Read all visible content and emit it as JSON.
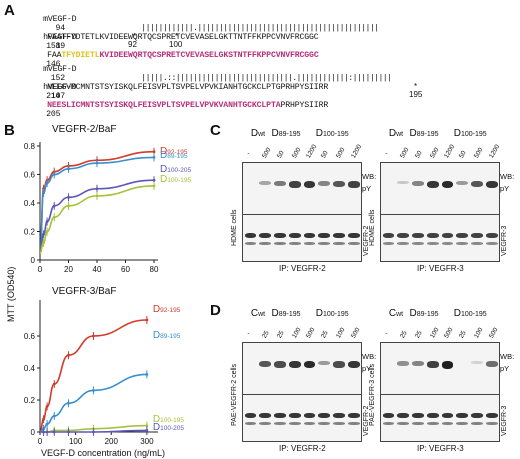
{
  "panels": {
    "A": "A",
    "B": "B",
    "C": "C",
    "D": "D"
  },
  "panel_a": {
    "rows": [
      {
        "label": "mVEGF-D",
        "start": "94",
        "seq_plain": "FAATFYDTETLKVIDEEWQRTQCSPRETCVEVASELGKTTNTFFKPPCVNVFRCGGC",
        "end": "151"
      },
      {
        "match": "||||||||||||.||||||||||||||||||||||||||||||||||||||||||",
        "match_spaced": "|.|| ||"
      },
      {
        "label": "hVEGF-D",
        "start": "89",
        "seq_plain": "FAA",
        "seq_yellow": "TFYDIETL",
        "seq_pink": "KVIDEEWQRTQCSPRETCVEVASELGKSTNTFFKPPCVNVFRCGGC",
        "end": "146"
      },
      {
        "label": "mVEGF-D",
        "start": "152",
        "seq_plain": "NEEGVMCMNTSTSYISKQLFEISVPLTSVPELVPVKIANHTGCKCLPTGPRHPYSIIRR",
        "end": "210"
      },
      {
        "match": "|||||.::|||||||||||||||||||||||||||.||||||||||||:|||||||||"
      },
      {
        "label": "hVEGF-D",
        "start": "147",
        "seq_pink": "NEESLICMNTSTSYISKQLFEISVPLTSVPELVPVKVANHTGCKCLPTA",
        "seq_plain": "PRHPYSIIRR",
        "end": "205"
      }
    ],
    "markers": [
      "92",
      "100",
      "195"
    ]
  },
  "panel_b": {
    "chart_data": [
      {
        "type": "line",
        "title": "VEGFR-2/BaF",
        "ylim": [
          0,
          0.8
        ],
        "xlim": [
          0,
          80
        ],
        "xticks": [
          0,
          20,
          40,
          60,
          80
        ],
        "yticks": [
          0,
          0.2,
          0.4,
          0.6,
          0.8
        ],
        "series": [
          {
            "name": "D92-195",
            "base": "D",
            "sub": "92-195",
            "color": "#d23b2a",
            "x": [
              0,
              2.5,
              5,
              10,
              20,
              40,
              80
            ],
            "y": [
              0.05,
              0.5,
              0.56,
              0.62,
              0.66,
              0.7,
              0.76
            ]
          },
          {
            "name": "D89-195",
            "base": "D",
            "sub": "89-195",
            "color": "#3a8fd0",
            "x": [
              0,
              2.5,
              5,
              10,
              20,
              40,
              80
            ],
            "y": [
              0.05,
              0.47,
              0.54,
              0.6,
              0.64,
              0.68,
              0.72
            ]
          },
          {
            "name": "D100-205",
            "base": "D",
            "sub": "100-205",
            "color": "#5a58b8",
            "x": [
              0,
              2.5,
              5,
              10,
              20,
              40,
              80
            ],
            "y": [
              0.05,
              0.18,
              0.27,
              0.38,
              0.44,
              0.5,
              0.56
            ]
          },
          {
            "name": "D100-195",
            "base": "D",
            "sub": "100-195",
            "color": "#a8c23a",
            "x": [
              0,
              2.5,
              5,
              10,
              20,
              40,
              80
            ],
            "y": [
              0.05,
              0.12,
              0.2,
              0.3,
              0.38,
              0.45,
              0.52
            ]
          }
        ]
      },
      {
        "type": "line",
        "title": "VEGFR-3/BaF",
        "ylim": [
          0,
          0.8
        ],
        "xlim": [
          0,
          320
        ],
        "xticks": [
          0,
          100,
          200,
          300
        ],
        "yticks": [
          0,
          0.2,
          0.4,
          0.6
        ],
        "xlabel": "VEGF-D concentration (ng/mL)",
        "series": [
          {
            "name": "D92-195",
            "base": "D",
            "sub": "92-195",
            "color": "#d23b2a",
            "x": [
              0,
              10,
              20,
              40,
              80,
              150,
              300
            ],
            "y": [
              0.0,
              0.08,
              0.16,
              0.3,
              0.48,
              0.6,
              0.7
            ]
          },
          {
            "name": "D89-195",
            "base": "D",
            "sub": "89-195",
            "color": "#3a8fd0",
            "x": [
              0,
              10,
              20,
              40,
              80,
              150,
              300
            ],
            "y": [
              0.0,
              0.02,
              0.05,
              0.1,
              0.18,
              0.26,
              0.36
            ]
          },
          {
            "name": "D100-195",
            "base": "D",
            "sub": "100-195",
            "color": "#a8c23a",
            "x": [
              0,
              10,
              20,
              40,
              80,
              150,
              300
            ],
            "y": [
              0.0,
              0.0,
              0.0,
              0.01,
              0.01,
              0.02,
              0.04
            ]
          },
          {
            "name": "D100-205",
            "base": "D",
            "sub": "100-205",
            "color": "#5a58b8",
            "x": [
              0,
              10,
              20,
              40,
              80,
              150,
              300
            ],
            "y": [
              0.0,
              0.0,
              0.0,
              0.0,
              0.0,
              0.0,
              0.01
            ]
          }
        ]
      }
    ],
    "ylabel": "MTT (OD540)"
  },
  "panel_c": {
    "left": {
      "groups": [
        "Dwt",
        "D89-195",
        "D100-195"
      ],
      "group_labels": [
        {
          "b": "D",
          "s": "wt"
        },
        {
          "b": "D",
          "s": "89-195"
        },
        {
          "b": "D",
          "s": "100-195"
        }
      ],
      "lanes": [
        "-",
        "500",
        "50",
        "500",
        "1200",
        "50",
        "500",
        "1200"
      ],
      "side_cells": "HDME cells",
      "side_receptor": "VEGFR-2",
      "wb": "WB:",
      "py": "pY",
      "ip": "IP: VEGFR-2",
      "top_intensity": [
        0.0,
        0.35,
        0.55,
        0.8,
        0.85,
        0.5,
        0.7,
        0.8
      ],
      "bottom_intensity": [
        0.85,
        0.85,
        0.85,
        0.85,
        0.85,
        0.85,
        0.85,
        0.85
      ]
    },
    "right": {
      "group_labels": [
        {
          "b": "D",
          "s": "wt"
        },
        {
          "b": "D",
          "s": "89-195"
        },
        {
          "b": "D",
          "s": "100-195"
        }
      ],
      "lanes": [
        "-",
        "500",
        "50",
        "500",
        "1200",
        "50",
        "500",
        "1200"
      ],
      "side_cells": "HDME cells",
      "side_receptor": "VEGFR-3",
      "wb": "WB:",
      "py": "pY",
      "ip": "IP: VEGFR-3",
      "top_intensity": [
        0.0,
        0.2,
        0.5,
        0.85,
        0.9,
        0.4,
        0.7,
        0.85
      ],
      "bottom_intensity": [
        0.8,
        0.8,
        0.8,
        0.8,
        0.8,
        0.8,
        0.8,
        0.8
      ]
    }
  },
  "panel_d": {
    "left": {
      "group_labels": [
        {
          "b": "C",
          "s": "wt"
        },
        {
          "b": "D",
          "s": "89-195"
        },
        {
          "b": "D",
          "s": "100-195"
        }
      ],
      "lanes": [
        "-",
        "25",
        "25",
        "100",
        "500",
        "25",
        "100",
        "500"
      ],
      "side_cells": "PAE-VEGFR-2 cells",
      "side_receptor": "VEGFR-2",
      "wb": "WB:",
      "py": "pY",
      "ip": "IP: VEGFR-2",
      "top_intensity": [
        0.0,
        0.7,
        0.75,
        0.85,
        0.9,
        0.4,
        0.75,
        0.85
      ],
      "bottom_intensity": [
        0.85,
        0.85,
        0.85,
        0.85,
        0.85,
        0.85,
        0.85,
        0.85
      ]
    },
    "right": {
      "group_labels": [
        {
          "b": "C",
          "s": "wt"
        },
        {
          "b": "D",
          "s": "89-195"
        },
        {
          "b": "D",
          "s": "100-195"
        }
      ],
      "lanes": [
        "-",
        "25",
        "25",
        "100",
        "500",
        "25",
        "100",
        "500"
      ],
      "side_cells": "PAE-VEGFR-3 cells",
      "side_receptor": "VEGFR-3",
      "wb": "WB:",
      "py": "pY",
      "ip": "IP: VEGFR-3",
      "top_intensity": [
        0.0,
        0.45,
        0.5,
        0.8,
        0.95,
        0.0,
        0.15,
        0.6
      ],
      "bottom_intensity": [
        0.85,
        0.85,
        0.85,
        0.85,
        0.85,
        0.85,
        0.85,
        0.85
      ]
    }
  }
}
